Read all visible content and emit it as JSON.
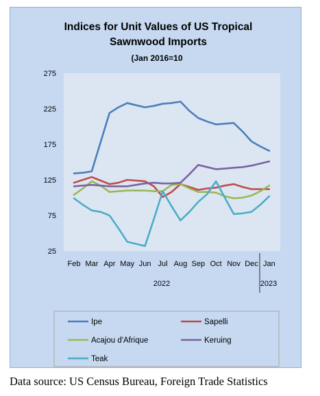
{
  "chart_data": {
    "type": "line",
    "title_lines": [
      "Indices for Unit Values of US Tropical",
      "Sawnwood Imports"
    ],
    "subtitle": "(Jan 2016=10",
    "categories": [
      "Feb",
      "Mar",
      "Apr",
      "May",
      "Jun",
      "Jul",
      "Aug",
      "Sep",
      "Oct",
      "Nov",
      "Dec",
      "Jan"
    ],
    "year_labels": [
      "2022",
      "2023"
    ],
    "ylim": [
      25,
      275
    ],
    "yticks": [
      25,
      75,
      125,
      175,
      225,
      275
    ],
    "grid": false,
    "legend_position": "bottom",
    "series": [
      {
        "name": "Ipe",
        "color": "#4a7ebb",
        "x": [
          0,
          0.5,
          1,
          1.5,
          2,
          2.5,
          3,
          3.5,
          4,
          4.5,
          5,
          5.5,
          6,
          6.5,
          7,
          7.5,
          8,
          8.5,
          9,
          9.5,
          10,
          10.5,
          11
        ],
        "values": [
          134,
          135,
          137,
          178,
          219,
          227,
          233,
          230,
          227,
          229,
          232,
          233,
          235,
          222,
          212,
          207,
          203,
          204,
          205,
          193,
          179,
          172,
          166
        ]
      },
      {
        "name": "Sapelli",
        "color": "#be4b48",
        "x": [
          0,
          0.5,
          1,
          1.5,
          2,
          2.5,
          3,
          3.5,
          4,
          4.5,
          5,
          5.5,
          6,
          6.5,
          7,
          7.5,
          8,
          8.5,
          9,
          9.5,
          10,
          10.5,
          11
        ],
        "values": [
          121,
          125,
          129,
          124,
          119,
          121,
          125,
          124,
          123,
          116,
          101,
          108,
          119,
          115,
          111,
          113,
          114,
          117,
          119,
          115,
          112,
          112,
          112
        ]
      },
      {
        "name": "Acajou d'Afrique",
        "color": "#98b954",
        "x": [
          0,
          0.5,
          1,
          1.5,
          2,
          2.5,
          3,
          3.5,
          4,
          4.5,
          5,
          5.5,
          6,
          6.5,
          7,
          7.5,
          8,
          8.5,
          9,
          9.5,
          10,
          10.5,
          11
        ],
        "values": [
          104,
          113,
          123,
          117,
          108,
          109,
          110,
          110,
          110,
          109,
          109,
          118,
          119,
          113,
          108,
          108,
          107,
          102,
          99,
          100,
          103,
          109,
          117
        ]
      },
      {
        "name": "Keruing",
        "color": "#7d60a0",
        "x": [
          0,
          0.5,
          1,
          1.5,
          2,
          2.5,
          3,
          3.5,
          4,
          4.5,
          5,
          5.5,
          6,
          6.5,
          7,
          7.5,
          8,
          8.5,
          9,
          9.5,
          10,
          10.5,
          11
        ],
        "values": [
          116,
          117,
          118,
          117,
          116,
          116,
          116,
          118,
          120,
          121,
          120,
          120,
          121,
          133,
          146,
          143,
          140,
          141,
          142,
          143,
          145,
          148,
          151
        ]
      },
      {
        "name": "Teak",
        "color": "#4bacc6",
        "x": [
          0,
          0.5,
          1,
          1.5,
          2,
          2.5,
          3,
          3.5,
          4,
          4.5,
          5,
          5.5,
          6,
          6.5,
          7,
          7.5,
          8,
          8.5,
          9,
          9.5,
          10,
          10.5,
          11
        ],
        "values": [
          99,
          90,
          82,
          80,
          75,
          57,
          38,
          35,
          32,
          70,
          109,
          88,
          68,
          80,
          94,
          105,
          123,
          100,
          77,
          78,
          80,
          90,
          102
        ]
      }
    ]
  },
  "source_note": "Data source: US Census Bureau, Foreign Trade Statistics"
}
